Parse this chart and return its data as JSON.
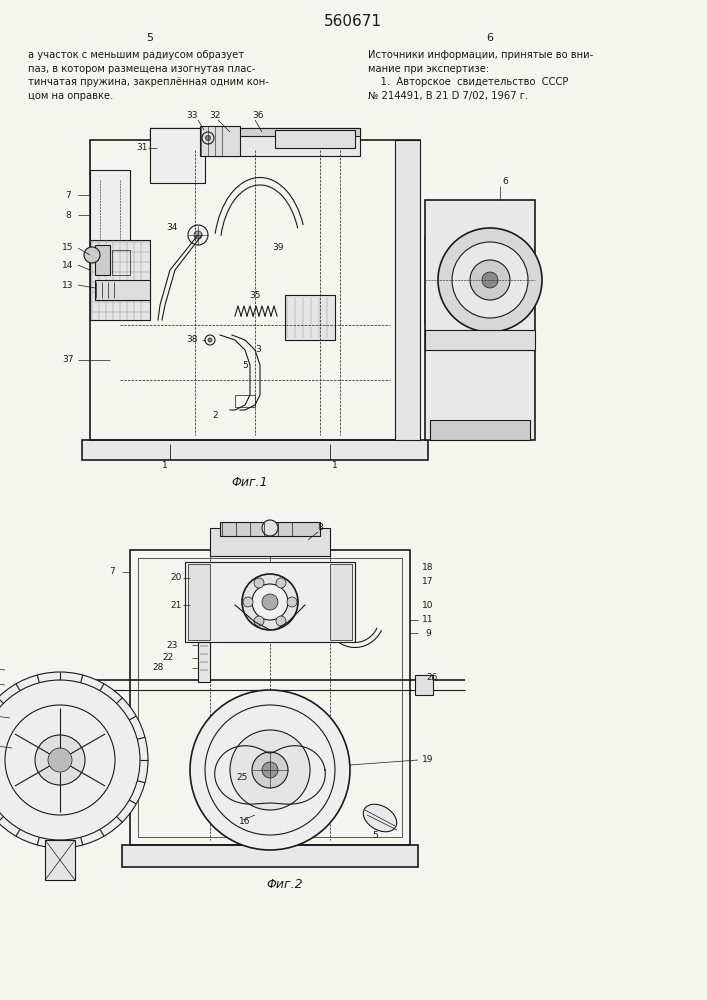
{
  "title": "560671",
  "background_color": "#f5f5f0",
  "line_color": "#1a1a1a",
  "text_color": "#1a1a1a",
  "left_text": "а участок с меньшим радиусом образует\nпаз, в котором размещена изогнутая плас-\nтинчатая пружина, закреплённая одним кон-\nцом на оправке.",
  "right_text": "Источники информации, принятые во вни-\nмание при экспертизе:\n    1.  Авторское  свидетельство  СССР\n№ 214491, В 21 D 7/02, 1967 г.",
  "fig1_caption": "Φиг.1",
  "fig2_caption": "Φиг.2",
  "fig_width": 7.07,
  "fig_height": 10.0
}
